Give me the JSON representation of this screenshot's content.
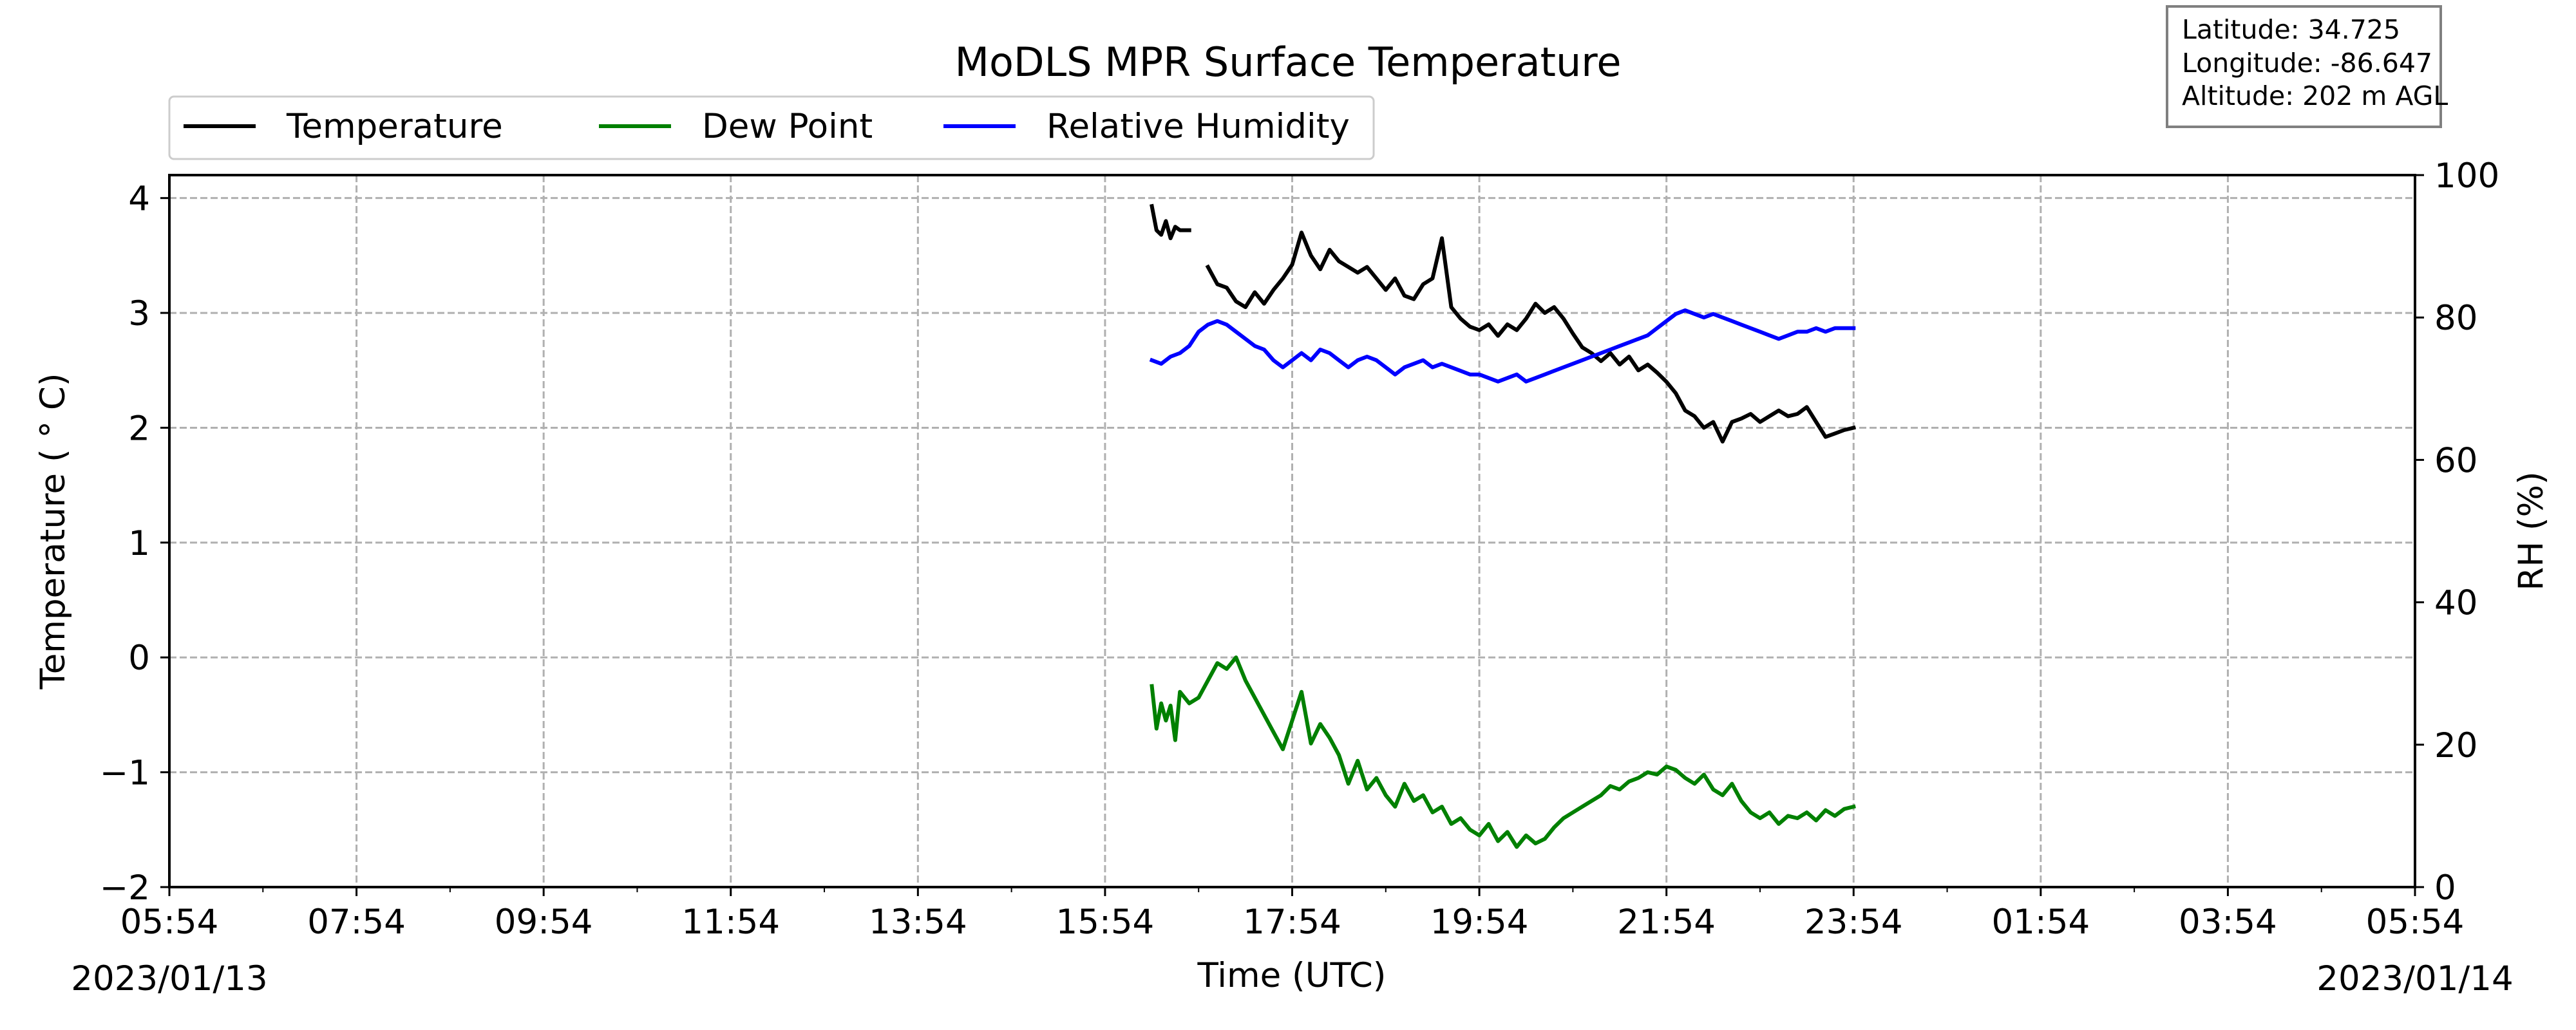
{
  "chart_data": {
    "type": "line",
    "title": "MoDLS MPR Surface Temperature",
    "xlabel": "Time (UTC)",
    "ylabel": "Temperature ($^\\circ$C)",
    "ylabel_display": "Temperature ( ° C)",
    "ylabel_right": "RH (%)",
    "xlim": [
      "2023-01-13 05:54",
      "2023-01-14 05:54"
    ],
    "ylim": [
      -2,
      4.2
    ],
    "ylim_right": [
      0,
      100
    ],
    "grid": true,
    "legend_position": "top-left",
    "x_tick_labels": [
      "05:54",
      "07:54",
      "09:54",
      "11:54",
      "13:54",
      "15:54",
      "17:54",
      "19:54",
      "21:54",
      "23:54",
      "01:54",
      "03:54",
      "05:54"
    ],
    "y_tick_labels": [
      "−2",
      "−1",
      "0",
      "1",
      "2",
      "3",
      "4"
    ],
    "y_right_tick_labels": [
      "0",
      "20",
      "40",
      "60",
      "80",
      "100"
    ],
    "date_start": "2023/01/13",
    "date_end": "2023/01/14",
    "info_box": [
      "Latitude: 34.725",
      "Longitude: -86.647",
      "Altitude: 202 m AGL"
    ],
    "series": [
      {
        "name": "Temperature",
        "axis": "left",
        "color": "#000000",
        "segments": [
          [
            [
              "16:24",
              3.93
            ],
            [
              "16:27",
              3.72
            ],
            [
              "16:30",
              3.68
            ],
            [
              "16:33",
              3.8
            ],
            [
              "16:36",
              3.65
            ],
            [
              "16:39",
              3.75
            ],
            [
              "16:42",
              3.72
            ],
            [
              "16:48",
              3.72
            ]
          ],
          [
            [
              "17:00",
              3.4
            ],
            [
              "17:06",
              3.25
            ],
            [
              "17:12",
              3.22
            ],
            [
              "17:18",
              3.1
            ],
            [
              "17:24",
              3.05
            ],
            [
              "17:30",
              3.18
            ],
            [
              "17:36",
              3.08
            ],
            [
              "17:42",
              3.2
            ],
            [
              "17:48",
              3.3
            ],
            [
              "17:54",
              3.42
            ],
            [
              "18:00",
              3.7
            ],
            [
              "18:06",
              3.5
            ],
            [
              "18:12",
              3.38
            ],
            [
              "18:18",
              3.55
            ],
            [
              "18:24",
              3.45
            ],
            [
              "18:30",
              3.4
            ],
            [
              "18:36",
              3.35
            ],
            [
              "18:42",
              3.4
            ],
            [
              "18:48",
              3.3
            ],
            [
              "18:54",
              3.2
            ],
            [
              "19:00",
              3.3
            ],
            [
              "19:06",
              3.15
            ],
            [
              "19:12",
              3.12
            ],
            [
              "19:18",
              3.25
            ],
            [
              "19:24",
              3.3
            ],
            [
              "19:30",
              3.65
            ],
            [
              "19:36",
              3.05
            ],
            [
              "19:42",
              2.95
            ],
            [
              "19:48",
              2.88
            ],
            [
              "19:54",
              2.85
            ],
            [
              "20:00",
              2.9
            ],
            [
              "20:06",
              2.8
            ],
            [
              "20:12",
              2.9
            ],
            [
              "20:18",
              2.85
            ],
            [
              "20:24",
              2.95
            ],
            [
              "20:30",
              3.08
            ],
            [
              "20:36",
              3.0
            ],
            [
              "20:42",
              3.05
            ],
            [
              "20:48",
              2.95
            ],
            [
              "20:54",
              2.82
            ],
            [
              "21:00",
              2.7
            ],
            [
              "21:06",
              2.65
            ],
            [
              "21:12",
              2.58
            ],
            [
              "21:18",
              2.65
            ],
            [
              "21:24",
              2.55
            ],
            [
              "21:30",
              2.62
            ],
            [
              "21:36",
              2.5
            ],
            [
              "21:42",
              2.55
            ],
            [
              "21:48",
              2.48
            ],
            [
              "21:54",
              2.4
            ],
            [
              "22:00",
              2.3
            ],
            [
              "22:06",
              2.15
            ],
            [
              "22:12",
              2.1
            ],
            [
              "22:18",
              2.0
            ],
            [
              "22:24",
              2.05
            ],
            [
              "22:30",
              1.88
            ],
            [
              "22:36",
              2.05
            ],
            [
              "22:42",
              2.08
            ],
            [
              "22:48",
              2.12
            ],
            [
              "22:54",
              2.05
            ],
            [
              "23:00",
              2.1
            ],
            [
              "23:06",
              2.15
            ],
            [
              "23:12",
              2.1
            ],
            [
              "23:18",
              2.12
            ],
            [
              "23:24",
              2.18
            ],
            [
              "23:30",
              2.05
            ],
            [
              "23:36",
              1.92
            ],
            [
              "23:42",
              1.95
            ],
            [
              "23:48",
              1.98
            ],
            [
              "23:54",
              2.0
            ]
          ]
        ]
      },
      {
        "name": "Dew Point",
        "axis": "left",
        "color": "#008000",
        "segments": [
          [
            [
              "16:24",
              -0.25
            ],
            [
              "16:27",
              -0.62
            ],
            [
              "16:30",
              -0.4
            ],
            [
              "16:33",
              -0.55
            ],
            [
              "16:36",
              -0.42
            ],
            [
              "16:39",
              -0.72
            ],
            [
              "16:42",
              -0.3
            ],
            [
              "16:48",
              -0.4
            ],
            [
              "16:54",
              -0.35
            ],
            [
              "17:00",
              -0.2
            ],
            [
              "17:06",
              -0.05
            ],
            [
              "17:12",
              -0.1
            ],
            [
              "17:18",
              0.0
            ],
            [
              "17:24",
              -0.2
            ],
            [
              "17:30",
              -0.35
            ],
            [
              "17:36",
              -0.5
            ],
            [
              "17:42",
              -0.65
            ],
            [
              "17:48",
              -0.8
            ],
            [
              "17:54",
              -0.55
            ],
            [
              "18:00",
              -0.3
            ],
            [
              "18:06",
              -0.75
            ],
            [
              "18:12",
              -0.58
            ],
            [
              "18:18",
              -0.7
            ],
            [
              "18:24",
              -0.85
            ],
            [
              "18:30",
              -1.1
            ],
            [
              "18:36",
              -0.9
            ],
            [
              "18:42",
              -1.15
            ],
            [
              "18:48",
              -1.05
            ],
            [
              "18:54",
              -1.2
            ],
            [
              "19:00",
              -1.3
            ],
            [
              "19:06",
              -1.1
            ],
            [
              "19:12",
              -1.25
            ],
            [
              "19:18",
              -1.2
            ],
            [
              "19:24",
              -1.35
            ],
            [
              "19:30",
              -1.3
            ],
            [
              "19:36",
              -1.45
            ],
            [
              "19:42",
              -1.4
            ],
            [
              "19:48",
              -1.5
            ],
            [
              "19:54",
              -1.55
            ],
            [
              "20:00",
              -1.45
            ],
            [
              "20:06",
              -1.6
            ],
            [
              "20:12",
              -1.52
            ],
            [
              "20:18",
              -1.65
            ],
            [
              "20:24",
              -1.55
            ],
            [
              "20:30",
              -1.62
            ],
            [
              "20:36",
              -1.58
            ],
            [
              "20:42",
              -1.48
            ],
            [
              "20:48",
              -1.4
            ],
            [
              "20:54",
              -1.35
            ],
            [
              "21:00",
              -1.3
            ],
            [
              "21:06",
              -1.25
            ],
            [
              "21:12",
              -1.2
            ],
            [
              "21:18",
              -1.12
            ],
            [
              "21:24",
              -1.15
            ],
            [
              "21:30",
              -1.08
            ],
            [
              "21:36",
              -1.05
            ],
            [
              "21:42",
              -1.0
            ],
            [
              "21:48",
              -1.02
            ],
            [
              "21:54",
              -0.95
            ],
            [
              "22:00",
              -0.98
            ],
            [
              "22:06",
              -1.05
            ],
            [
              "22:12",
              -1.1
            ],
            [
              "22:18",
              -1.02
            ],
            [
              "22:24",
              -1.15
            ],
            [
              "22:30",
              -1.2
            ],
            [
              "22:36",
              -1.1
            ],
            [
              "22:42",
              -1.25
            ],
            [
              "22:48",
              -1.35
            ],
            [
              "22:54",
              -1.4
            ],
            [
              "23:00",
              -1.35
            ],
            [
              "23:06",
              -1.45
            ],
            [
              "23:12",
              -1.38
            ],
            [
              "23:18",
              -1.4
            ],
            [
              "23:24",
              -1.35
            ],
            [
              "23:30",
              -1.42
            ],
            [
              "23:36",
              -1.33
            ],
            [
              "23:42",
              -1.38
            ],
            [
              "23:48",
              -1.32
            ],
            [
              "23:54",
              -1.3
            ]
          ]
        ]
      },
      {
        "name": "Relative Humidity",
        "axis": "right",
        "color": "#0000ff",
        "segments": [
          [
            [
              "16:24",
              74
            ],
            [
              "16:30",
              73.5
            ],
            [
              "16:36",
              74.5
            ],
            [
              "16:42",
              75
            ],
            [
              "16:48",
              76
            ],
            [
              "16:54",
              78
            ],
            [
              "17:00",
              79
            ],
            [
              "17:06",
              79.5
            ],
            [
              "17:12",
              79
            ],
            [
              "17:18",
              78
            ],
            [
              "17:24",
              77
            ],
            [
              "17:30",
              76
            ],
            [
              "17:36",
              75.5
            ],
            [
              "17:42",
              74
            ],
            [
              "17:48",
              73
            ],
            [
              "17:54",
              74
            ],
            [
              "18:00",
              75
            ],
            [
              "18:06",
              74
            ],
            [
              "18:12",
              75.5
            ],
            [
              "18:18",
              75
            ],
            [
              "18:24",
              74
            ],
            [
              "18:30",
              73
            ],
            [
              "18:36",
              74
            ],
            [
              "18:42",
              74.5
            ],
            [
              "18:48",
              74
            ],
            [
              "18:54",
              73
            ],
            [
              "19:00",
              72
            ],
            [
              "19:06",
              73
            ],
            [
              "19:12",
              73.5
            ],
            [
              "19:18",
              74
            ],
            [
              "19:24",
              73
            ],
            [
              "19:30",
              73.5
            ],
            [
              "19:36",
              73
            ],
            [
              "19:42",
              72.5
            ],
            [
              "19:48",
              72
            ],
            [
              "19:54",
              72
            ],
            [
              "20:00",
              71.5
            ],
            [
              "20:06",
              71
            ],
            [
              "20:12",
              71.5
            ],
            [
              "20:18",
              72
            ],
            [
              "20:24",
              71
            ],
            [
              "20:30",
              71.5
            ],
            [
              "20:36",
              72
            ],
            [
              "20:42",
              72.5
            ],
            [
              "20:48",
              73
            ],
            [
              "20:54",
              73.5
            ],
            [
              "21:00",
              74
            ],
            [
              "21:06",
              74.5
            ],
            [
              "21:12",
              75
            ],
            [
              "21:18",
              75.5
            ],
            [
              "21:24",
              76
            ],
            [
              "21:30",
              76.5
            ],
            [
              "21:36",
              77
            ],
            [
              "21:42",
              77.5
            ],
            [
              "21:48",
              78.5
            ],
            [
              "21:54",
              79.5
            ],
            [
              "22:00",
              80.5
            ],
            [
              "22:06",
              81
            ],
            [
              "22:12",
              80.5
            ],
            [
              "22:18",
              80
            ],
            [
              "22:24",
              80.5
            ],
            [
              "22:30",
              80
            ],
            [
              "22:36",
              79.5
            ],
            [
              "22:42",
              79
            ],
            [
              "22:48",
              78.5
            ],
            [
              "22:54",
              78
            ],
            [
              "23:00",
              77.5
            ],
            [
              "23:06",
              77
            ],
            [
              "23:12",
              77.5
            ],
            [
              "23:18",
              78
            ],
            [
              "23:24",
              78
            ],
            [
              "23:30",
              78.5
            ],
            [
              "23:36",
              78
            ],
            [
              "23:42",
              78.5
            ],
            [
              "23:48",
              78.5
            ],
            [
              "23:54",
              78.5
            ]
          ]
        ]
      }
    ]
  }
}
